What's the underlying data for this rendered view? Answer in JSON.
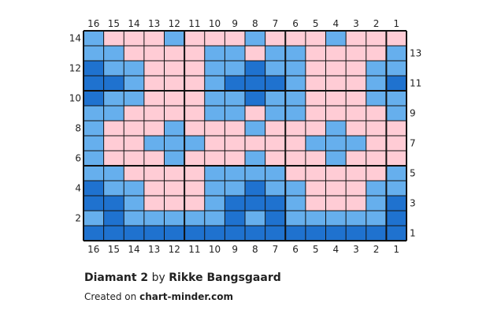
{
  "chart_data": {
    "type": "heatmap",
    "columns": [
      16,
      15,
      14,
      13,
      12,
      11,
      10,
      9,
      8,
      7,
      6,
      5,
      4,
      3,
      2,
      1
    ],
    "rows": [
      14,
      13,
      12,
      11,
      10,
      9,
      8,
      7,
      6,
      5,
      4,
      3,
      2,
      1
    ],
    "palette": {
      "P": "#ffccd5",
      "L": "#66afed",
      "D": "#1f72cf"
    },
    "grid": [
      "LPPPLPPPLPPPLPPP",
      "LLPPPPLLPLLPPPPL",
      "DLLPPPLLDLLPPPLL",
      "DDLPPPLDDDLPPPLD",
      "DLLPPPLLDLLPPPLL",
      "LLPPPPLLPLLPPPPL",
      "LPPPLPPPLPPPLPPP",
      "LPPLLLPPPPPLLLPP",
      "LPPPLPPPLPPPLPPP",
      "LLPPPPLLLLPPPPPL",
      "DLLPPPLLDLLPPPLL",
      "DDLPPPLDDDLPPPLD",
      "LDLLLLLDLDLLLLLD",
      "DDDDDDDDDDDDDDDD"
    ]
  },
  "caption": {
    "title": "Diamant 2",
    "by": "by",
    "author": "Rikke Bangsgaard",
    "created_prefix": "Created on",
    "site": "chart-minder.com"
  }
}
